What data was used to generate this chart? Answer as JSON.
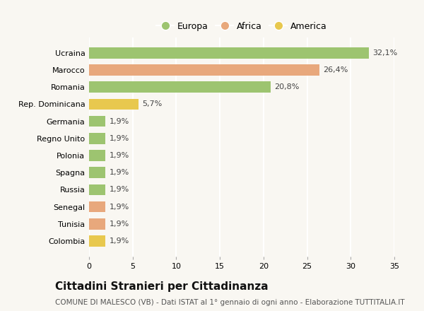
{
  "categories": [
    "Ucraina",
    "Marocco",
    "Romania",
    "Rep. Dominicana",
    "Germania",
    "Regno Unito",
    "Polonia",
    "Spagna",
    "Russia",
    "Senegal",
    "Tunisia",
    "Colombia"
  ],
  "values": [
    32.1,
    26.4,
    20.8,
    5.7,
    1.9,
    1.9,
    1.9,
    1.9,
    1.9,
    1.9,
    1.9,
    1.9
  ],
  "labels": [
    "32,1%",
    "26,4%",
    "20,8%",
    "5,7%",
    "1,9%",
    "1,9%",
    "1,9%",
    "1,9%",
    "1,9%",
    "1,9%",
    "1,9%",
    "1,9%"
  ],
  "colors": [
    "#9dc470",
    "#e8a87c",
    "#9dc470",
    "#e8c84e",
    "#9dc470",
    "#9dc470",
    "#9dc470",
    "#9dc470",
    "#9dc470",
    "#e8a87c",
    "#e8a87c",
    "#e8c84e"
  ],
  "legend": [
    {
      "label": "Europa",
      "color": "#9dc470"
    },
    {
      "label": "Africa",
      "color": "#e8a87c"
    },
    {
      "label": "America",
      "color": "#e8c84e"
    }
  ],
  "title": "Cittadini Stranieri per Cittadinanza",
  "subtitle": "COMUNE DI MALESCO (VB) - Dati ISTAT al 1° gennaio di ogni anno - Elaborazione TUTTITALIA.IT",
  "xlim": [
    0,
    35
  ],
  "xticks": [
    0,
    5,
    10,
    15,
    20,
    25,
    30,
    35
  ],
  "background_color": "#f9f7f2",
  "grid_color": "#ffffff",
  "bar_height": 0.65,
  "title_fontsize": 11,
  "subtitle_fontsize": 7.5,
  "label_fontsize": 8,
  "tick_fontsize": 8,
  "legend_fontsize": 9
}
